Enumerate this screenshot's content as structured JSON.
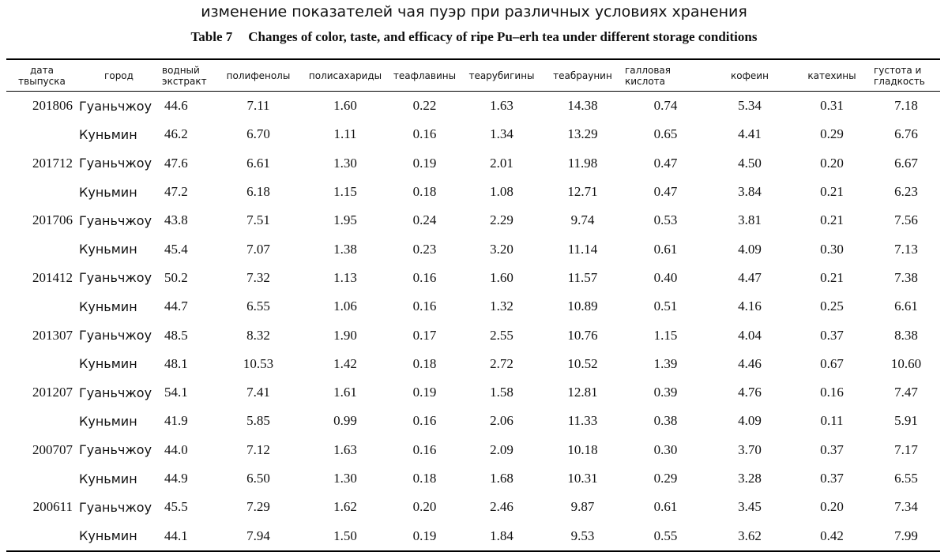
{
  "title_ru": "изменение показателей чая пуэр при различных условиях хранения",
  "table_label": "Table 7",
  "title_en": "Changes of color, taste, and efficacy of ripe Pu–erh tea under different storage conditions",
  "headers": [
    "дата твыпуска",
    "город",
    "водный экстракт",
    "полифенолы",
    "полисахариды",
    "теафлавины",
    "теарубигины",
    "теабраунин",
    "галловая кислота",
    "кофеин",
    "катехины",
    "густота и гладкость"
  ],
  "rows": [
    [
      "201806",
      "Гуаньчжоу",
      "44.6",
      "7.11",
      "1.60",
      "0.22",
      "1.63",
      "14.38",
      "0.74",
      "5.34",
      "0.31",
      "7.18"
    ],
    [
      "",
      "Куньмин",
      "46.2",
      "6.70",
      "1.11",
      "0.16",
      "1.34",
      "13.29",
      "0.65",
      "4.41",
      "0.29",
      "6.76"
    ],
    [
      "201712",
      "Гуаньчжоу",
      "47.6",
      "6.61",
      "1.30",
      "0.19",
      "2.01",
      "11.98",
      "0.47",
      "4.50",
      "0.20",
      "6.67"
    ],
    [
      "",
      "Куньмин",
      "47.2",
      "6.18",
      "1.15",
      "0.18",
      "1.08",
      "12.71",
      "0.47",
      "3.84",
      "0.21",
      "6.23"
    ],
    [
      "201706",
      "Гуаньчжоу",
      "43.8",
      "7.51",
      "1.95",
      "0.24",
      "2.29",
      "9.74",
      "0.53",
      "3.81",
      "0.21",
      "7.56"
    ],
    [
      "",
      "Куньмин",
      "45.4",
      "7.07",
      "1.38",
      "0.23",
      "3.20",
      "11.14",
      "0.61",
      "4.09",
      "0.30",
      "7.13"
    ],
    [
      "201412",
      "Гуаньчжоу",
      "50.2",
      "7.32",
      "1.13",
      "0.16",
      "1.60",
      "11.57",
      "0.40",
      "4.47",
      "0.21",
      "7.38"
    ],
    [
      "",
      "Куньмин",
      "44.7",
      "6.55",
      "1.06",
      "0.16",
      "1.32",
      "10.89",
      "0.51",
      "4.16",
      "0.25",
      "6.61"
    ],
    [
      "201307",
      "Гуаньчжоу",
      "48.5",
      "8.32",
      "1.90",
      "0.17",
      "2.55",
      "10.76",
      "1.15",
      "4.04",
      "0.37",
      "8.38"
    ],
    [
      "",
      "Куньмин",
      "48.1",
      "10.53",
      "1.42",
      "0.18",
      "2.72",
      "10.52",
      "1.39",
      "4.46",
      "0.67",
      "10.60"
    ],
    [
      "201207",
      "Гуаньчжоу",
      "54.1",
      "7.41",
      "1.61",
      "0.19",
      "1.58",
      "12.81",
      "0.39",
      "4.76",
      "0.16",
      "7.47"
    ],
    [
      "",
      "Куньмин",
      "41.9",
      "5.85",
      "0.99",
      "0.16",
      "2.06",
      "11.33",
      "0.38",
      "4.09",
      "0.11",
      "5.91"
    ],
    [
      "200707",
      "Гуаньчжоу",
      "44.0",
      "7.12",
      "1.63",
      "0.16",
      "2.09",
      "10.18",
      "0.30",
      "3.70",
      "0.37",
      "7.17"
    ],
    [
      "",
      "Куньмин",
      "44.9",
      "6.50",
      "1.30",
      "0.18",
      "1.68",
      "10.31",
      "0.29",
      "3.28",
      "0.37",
      "6.55"
    ],
    [
      "200611",
      "Гуаньчжоу",
      "45.5",
      "7.29",
      "1.62",
      "0.20",
      "2.46",
      "9.87",
      "0.61",
      "3.45",
      "0.20",
      "7.34"
    ],
    [
      "",
      "Куньмин",
      "44.1",
      "7.94",
      "1.50",
      "0.19",
      "1.84",
      "9.53",
      "0.55",
      "3.62",
      "0.42",
      "7.99"
    ]
  ]
}
